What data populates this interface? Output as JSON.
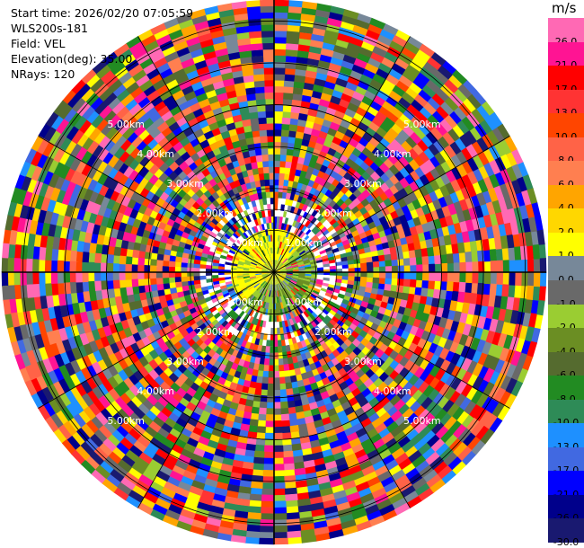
{
  "header": {
    "start_time": "Start time: 2026/02/20 07:05:59",
    "site": "WLS200s-181",
    "field": "Field: VEL",
    "elevation": "Elevation(deg): 35.00",
    "nrays": "NRays: 120"
  },
  "colorbar": {
    "unit": "m/s",
    "bins": [
      {
        "label": "26.0",
        "color": "#ff69b4"
      },
      {
        "label": "21.0",
        "color": "#ff1493"
      },
      {
        "label": "17.0",
        "color": "#ff0000"
      },
      {
        "label": "13.0",
        "color": "#ff3333"
      },
      {
        "label": "10.0",
        "color": "#ff4500"
      },
      {
        "label": "8.0",
        "color": "#ff6347"
      },
      {
        "label": "6.0",
        "color": "#ff7f50"
      },
      {
        "label": "4.0",
        "color": "#ffa500"
      },
      {
        "label": "2.0",
        "color": "#ffd700"
      },
      {
        "label": "1.0",
        "color": "#ffff00"
      },
      {
        "label": "0.0",
        "color": "#778899"
      },
      {
        "label": "-1.0",
        "color": "#696969"
      },
      {
        "label": "-2.0",
        "color": "#9acd32"
      },
      {
        "label": "-4.0",
        "color": "#6b8e23"
      },
      {
        "label": "-6.0",
        "color": "#556b2f"
      },
      {
        "label": "-8.0",
        "color": "#228b22"
      },
      {
        "label": "-10.0",
        "color": "#2e8b57"
      },
      {
        "label": "-13.0",
        "color": "#1e90ff"
      },
      {
        "label": "-17.0",
        "color": "#4169e1"
      },
      {
        "label": "-21.0",
        "color": "#0000ff"
      },
      {
        "label": "-26.0",
        "color": "#00008b"
      },
      {
        "label": "-30.0",
        "color": "#191970"
      }
    ]
  },
  "chart_data": {
    "type": "heatmap",
    "subtype": "ppi_polar",
    "field": "VEL",
    "units": "m/s",
    "n_rays": 120,
    "max_range_km": 6.5,
    "range_rings_km": [
      1,
      2,
      3,
      4,
      5,
      6
    ],
    "ring_labels": [
      "1.00km",
      "2.00km",
      "3.00km",
      "4.00km",
      "5.00km"
    ],
    "grid_rings_km": [
      1.5,
      4.0
    ],
    "spokes_deg": [
      0,
      30,
      60,
      90,
      120,
      150,
      180,
      210,
      240,
      270,
      300,
      330
    ],
    "near_field_pattern": "yellow at 0-1 km in northwest, green at 0-1 km in southeast",
    "far_field_pattern": "noisy multicolored velocities beyond ~1 km"
  }
}
